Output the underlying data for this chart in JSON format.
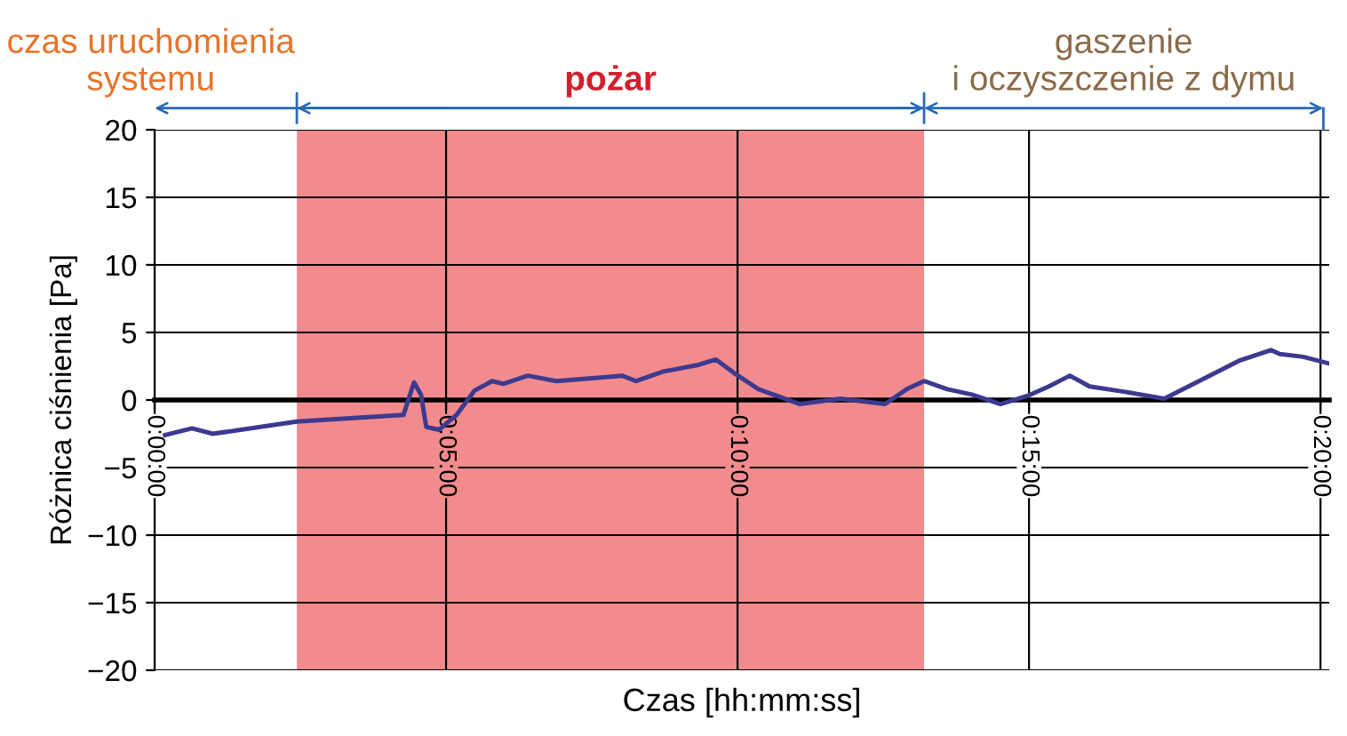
{
  "chart_data": {
    "type": "line",
    "xlabel": "Czas [hh:mm:ss]",
    "ylabel": "Różnica ciśnienia [Pa]",
    "annotations": [
      "czas uruchomienia\nsystemu",
      "gaszenie\ni oczyszczenie z dymu"
    ],
    "bands": [
      {
        "axis": "x",
        "from": 2.44,
        "to": 13.2,
        "label": "pożar",
        "color": "#f28b8d"
      }
    ],
    "series": [
      {
        "color": "#3c3a8f",
        "x": [
          0.18,
          0.64,
          1.0,
          2.44,
          4.27,
          4.45,
          4.57,
          4.66,
          4.88,
          5.18,
          5.49,
          5.79,
          5.98,
          6.4,
          6.89,
          8.02,
          8.26,
          8.72,
          9.33,
          9.63,
          9.94,
          10.36,
          11.07,
          11.77,
          12.53,
          12.9,
          13.2,
          13.6,
          14.02,
          14.51,
          14.97,
          15.34,
          15.7,
          16.04,
          16.65,
          17.32,
          17.87,
          18.6,
          19.15,
          19.3,
          19.7,
          20.15
        ],
        "values": [
          -2.6,
          -2.1,
          -2.5,
          -1.6,
          -1.1,
          1.3,
          0.4,
          -2.0,
          -2.2,
          -1.1,
          0.7,
          1.4,
          1.2,
          1.8,
          1.4,
          1.8,
          1.4,
          2.1,
          2.6,
          3.0,
          2.0,
          0.8,
          -0.3,
          0.1,
          -0.3,
          0.8,
          1.4,
          0.8,
          0.4,
          -0.3,
          0.3,
          1.0,
          1.8,
          1.0,
          0.6,
          0.1,
          1.3,
          2.9,
          3.7,
          3.4,
          3.2,
          2.7
        ]
      }
    ],
    "xlim": [
      0,
      20.15
    ],
    "xticks": [
      {
        "value": 0,
        "label": "0:00:00"
      },
      {
        "value": 5,
        "label": "0:05:00"
      },
      {
        "value": 10,
        "label": "0:10:00"
      },
      {
        "value": 15,
        "label": "0:15:00"
      },
      {
        "value": 20,
        "label": "0:20:00"
      }
    ],
    "ylim": [
      -20,
      20
    ],
    "yticks": [
      -20,
      -15,
      -10,
      -5,
      0,
      5,
      10,
      15,
      20
    ],
    "grid": true,
    "line_style": "solid",
    "marker": "none",
    "legend": false
  }
}
